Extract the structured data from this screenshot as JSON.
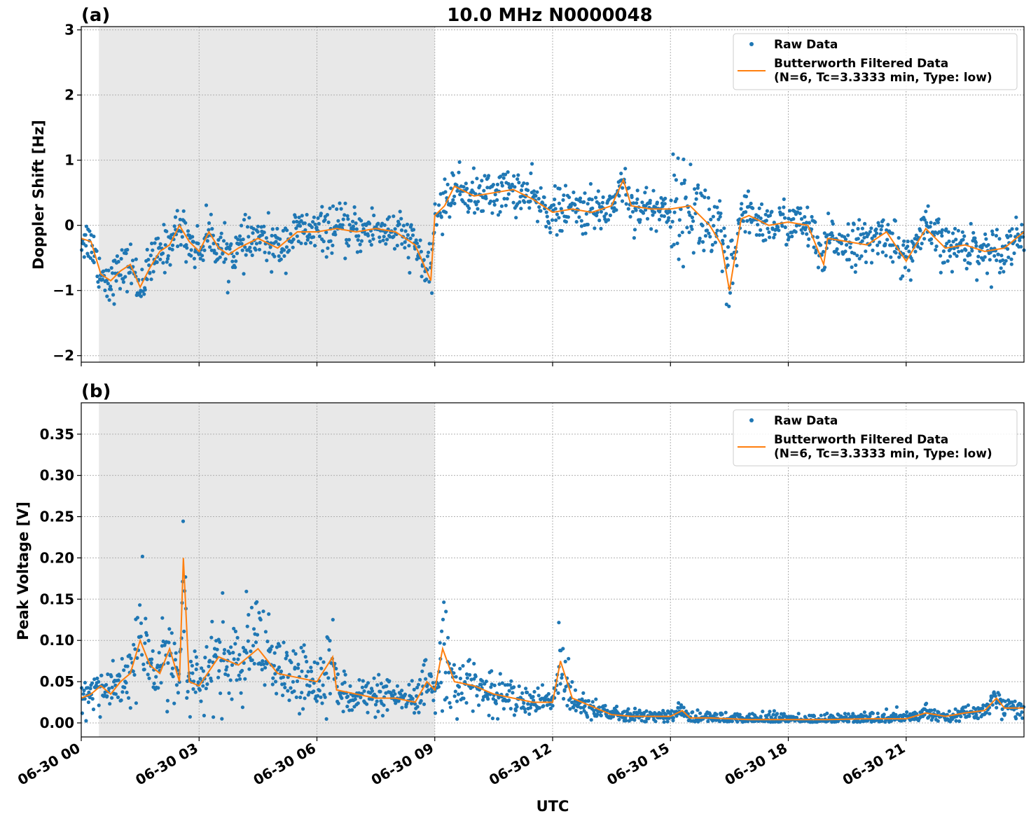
{
  "title": "10.0 MHz N0000048",
  "colors": {
    "raw": "#1f77b4",
    "filtered": "#ff7f0e",
    "shade": "#e8e8e8",
    "grid": "#b0b0b0"
  },
  "legend": {
    "raw_label": "Raw Data",
    "filtered_label_line1": "Butterworth Filtered Data",
    "filtered_label_line2": "(N=6, Tc=3.3333 min, Type: low)",
    "placement": "top-right"
  },
  "xaxis": {
    "label": "UTC",
    "range_hours": [
      0,
      24
    ],
    "ticks": [
      0,
      3,
      6,
      9,
      12,
      15,
      18,
      21
    ],
    "tick_labels": [
      "06-30 00",
      "06-30 03",
      "06-30 06",
      "06-30 09",
      "06-30 12",
      "06-30 15",
      "06-30 18",
      "06-30 21"
    ]
  },
  "chart_data": [
    {
      "type": "scatter",
      "panel_label": "(a)",
      "ylabel": "Doppler Shift [Hz]",
      "ylim": [
        -2.1,
        3.05
      ],
      "yticks": [
        -2,
        -1,
        0,
        1,
        2,
        3
      ],
      "ytick_labels": [
        "−2",
        "−1",
        "0",
        "1",
        "2",
        "3"
      ],
      "grid": true,
      "shaded_interval_hours": [
        0.45,
        9.0
      ],
      "series": [
        {
          "name": "Butterworth Filtered Data",
          "x": [
            0,
            0.25,
            0.5,
            0.75,
            1.0,
            1.25,
            1.5,
            1.75,
            2.0,
            2.25,
            2.5,
            2.75,
            3.0,
            3.25,
            3.5,
            3.75,
            4.0,
            4.5,
            5.0,
            5.5,
            6.0,
            6.5,
            7.0,
            7.5,
            8.0,
            8.5,
            8.9,
            9.0,
            9.25,
            9.5,
            10.0,
            10.5,
            11.0,
            11.5,
            12.0,
            12.5,
            13.0,
            13.5,
            13.8,
            14.0,
            14.5,
            15.0,
            15.5,
            16.0,
            16.3,
            16.5,
            16.8,
            17.0,
            17.5,
            18.0,
            18.5,
            18.9,
            19.0,
            19.5,
            20.0,
            20.5,
            21.0,
            21.5,
            22.0,
            22.5,
            23.0,
            23.5,
            24.0
          ],
          "values": [
            -0.2,
            -0.25,
            -0.75,
            -0.85,
            -0.7,
            -0.6,
            -0.95,
            -0.65,
            -0.4,
            -0.3,
            0.0,
            -0.25,
            -0.4,
            -0.1,
            -0.35,
            -0.45,
            -0.35,
            -0.2,
            -0.35,
            -0.1,
            -0.1,
            -0.05,
            -0.1,
            -0.05,
            -0.1,
            -0.3,
            -0.85,
            0.15,
            0.3,
            0.6,
            0.45,
            0.5,
            0.55,
            0.4,
            0.2,
            0.25,
            0.2,
            0.3,
            0.7,
            0.3,
            0.25,
            0.25,
            0.3,
            0.0,
            -0.3,
            -1.0,
            0.1,
            0.15,
            0.0,
            0.05,
            0.0,
            -0.6,
            -0.2,
            -0.25,
            -0.3,
            -0.1,
            -0.55,
            -0.05,
            -0.35,
            -0.3,
            -0.4,
            -0.35,
            -0.1
          ]
        }
      ]
    },
    {
      "type": "scatter",
      "panel_label": "(b)",
      "ylabel": "Peak Voltage [V]",
      "ylim": [
        -0.017,
        0.388
      ],
      "yticks": [
        0.0,
        0.05,
        0.1,
        0.15,
        0.2,
        0.25,
        0.3,
        0.35
      ],
      "ytick_labels": [
        "0.00",
        "0.05",
        "0.10",
        "0.15",
        "0.20",
        "0.25",
        "0.30",
        "0.35"
      ],
      "grid": true,
      "shaded_interval_hours": [
        0.45,
        9.0
      ],
      "series": [
        {
          "name": "Butterworth Filtered Data",
          "x": [
            0,
            0.25,
            0.5,
            0.75,
            1.0,
            1.25,
            1.5,
            1.75,
            2.0,
            2.25,
            2.5,
            2.6,
            2.75,
            3.0,
            3.5,
            4.0,
            4.5,
            5.0,
            5.5,
            6.0,
            6.4,
            6.5,
            7.0,
            7.5,
            8.0,
            8.5,
            8.8,
            9.0,
            9.2,
            9.5,
            10.0,
            10.5,
            11.0,
            11.5,
            12.0,
            12.2,
            12.5,
            13.0,
            13.5,
            14.0,
            14.5,
            15.0,
            15.3,
            15.5,
            16.0,
            17.0,
            18.0,
            19.0,
            20.0,
            21.0,
            21.5,
            22.0,
            22.5,
            23.0,
            23.3,
            23.5,
            24.0
          ],
          "values": [
            0.03,
            0.035,
            0.045,
            0.035,
            0.05,
            0.06,
            0.1,
            0.07,
            0.06,
            0.09,
            0.05,
            0.2,
            0.05,
            0.045,
            0.08,
            0.07,
            0.09,
            0.06,
            0.055,
            0.05,
            0.08,
            0.04,
            0.035,
            0.03,
            0.03,
            0.025,
            0.05,
            0.04,
            0.09,
            0.05,
            0.045,
            0.035,
            0.03,
            0.025,
            0.025,
            0.075,
            0.03,
            0.02,
            0.01,
            0.008,
            0.008,
            0.008,
            0.015,
            0.006,
            0.006,
            0.004,
            0.004,
            0.004,
            0.005,
            0.005,
            0.012,
            0.008,
            0.012,
            0.015,
            0.03,
            0.018,
            0.018
          ]
        }
      ]
    }
  ]
}
